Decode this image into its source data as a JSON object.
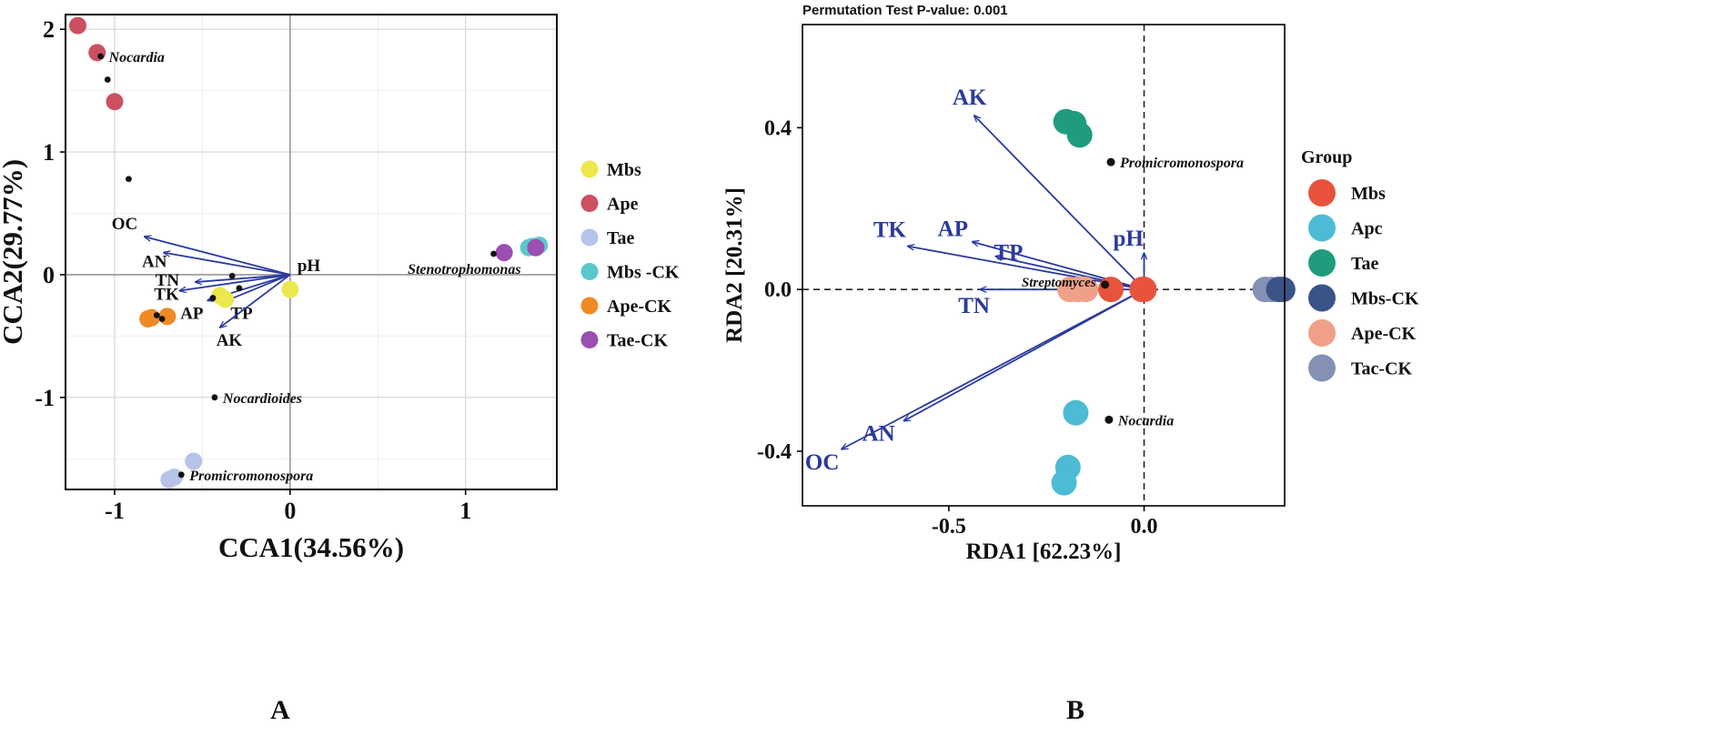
{
  "colors": {
    "arrow": "#2B3A9E",
    "frame": "#000000",
    "gridA_major": "#dcdcdc",
    "gridA_minor": "#efefef",
    "zero_line": "#9a9a9a",
    "point": "#111111"
  },
  "chart_data": [
    {
      "id": "A",
      "type": "scatter",
      "subtype": "CCA biplot",
      "panel_label": "A",
      "xlabel": "CCA1(34.56%)",
      "ylabel": "CCA2(29.77%)",
      "xlim": [
        -1.28,
        1.52
      ],
      "ylim": [
        -1.75,
        2.12
      ],
      "xticks": [
        {
          "v": -1,
          "label": "-1"
        },
        {
          "v": 0,
          "label": "0"
        },
        {
          "v": 1,
          "label": "1"
        }
      ],
      "yticks": [
        {
          "v": -1,
          "label": "-1"
        },
        {
          "v": 0,
          "label": "0"
        },
        {
          "v": 1,
          "label": "1"
        },
        {
          "v": 2,
          "label": "2"
        }
      ],
      "grid": true,
      "legend_title": "",
      "legend": [
        {
          "name": "Mbs",
          "color": "#ECE84B"
        },
        {
          "name": "Ape",
          "color": "#CC4F62"
        },
        {
          "name": "Tae",
          "color": "#B7C3E8"
        },
        {
          "name": "Mbs -CK",
          "color": "#5CC7CB"
        },
        {
          "name": "Ape-CK",
          "color": "#F08A24"
        },
        {
          "name": "Tae-CK",
          "color": "#9A4FB1"
        }
      ],
      "samples": [
        {
          "group": "Ape",
          "x": -1.21,
          "y": 2.03
        },
        {
          "group": "Ape",
          "x": -1.1,
          "y": 1.81
        },
        {
          "group": "Ape",
          "x": -1.0,
          "y": 1.41
        },
        {
          "group": "Mbs",
          "x": -0.37,
          "y": -0.2
        },
        {
          "group": "Mbs",
          "x": -0.4,
          "y": -0.17
        },
        {
          "group": "Mbs",
          "x": 0.0,
          "y": -0.12
        },
        {
          "group": "Tae",
          "x": -0.55,
          "y": -1.52
        },
        {
          "group": "Tae",
          "x": -0.66,
          "y": -1.65
        },
        {
          "group": "Tae",
          "x": -0.69,
          "y": -1.67
        },
        {
          "group": "Ape-CK",
          "x": -0.79,
          "y": -0.35
        },
        {
          "group": "Ape-CK",
          "x": -0.81,
          "y": -0.36
        },
        {
          "group": "Ape-CK",
          "x": -0.7,
          "y": -0.34
        },
        {
          "group": "Mbs -CK",
          "x": 1.36,
          "y": 0.22
        },
        {
          "group": "Mbs -CK",
          "x": 1.38,
          "y": 0.23
        },
        {
          "group": "Mbs -CK",
          "x": 1.42,
          "y": 0.24
        },
        {
          "group": "Tae-CK",
          "x": 1.22,
          "y": 0.18
        },
        {
          "group": "Tae-CK",
          "x": 1.4,
          "y": 0.22
        }
      ],
      "taxa": [
        {
          "name": "Nocardia",
          "x": -1.08,
          "y": 1.78,
          "label": true
        },
        {
          "name": "",
          "x": -1.04,
          "y": 1.59,
          "label": false
        },
        {
          "name": "",
          "x": -0.92,
          "y": 0.78,
          "label": false
        },
        {
          "name": "",
          "x": -0.76,
          "y": -0.33,
          "label": false
        },
        {
          "name": "",
          "x": -0.73,
          "y": -0.36,
          "label": false
        },
        {
          "name": "",
          "x": -0.33,
          "y": -0.01,
          "label": false
        },
        {
          "name": "",
          "x": -0.29,
          "y": -0.11,
          "label": false
        },
        {
          "name": "",
          "x": -0.44,
          "y": -0.19,
          "label": false
        },
        {
          "name": "Stenotrophomonas",
          "x": 1.16,
          "y": 0.17,
          "label": true
        },
        {
          "name": "Nocardioides",
          "x": -0.43,
          "y": -1.0,
          "label": true
        },
        {
          "name": "Promicromonospora",
          "x": -0.62,
          "y": -1.63,
          "label": true
        }
      ],
      "vectors": [
        {
          "name": "OC",
          "x": -0.83,
          "y": 0.31
        },
        {
          "name": "AN",
          "x": -0.72,
          "y": 0.18
        },
        {
          "name": "TN",
          "x": -0.54,
          "y": -0.06
        },
        {
          "name": "TK",
          "x": -0.63,
          "y": -0.13
        },
        {
          "name": "AP",
          "x": -0.47,
          "y": -0.21
        },
        {
          "name": "TP",
          "x": -0.36,
          "y": -0.21
        },
        {
          "name": "AK",
          "x": -0.4,
          "y": -0.43
        },
        {
          "name": "pH",
          "x": 0.0,
          "y": 0.0
        }
      ]
    },
    {
      "id": "B",
      "type": "scatter",
      "subtype": "RDA biplot",
      "panel_label": "B",
      "title": "Permutation Test P-value: 0.001",
      "xlabel": "RDA1 [62.23%]",
      "ylabel": "RDA2 [20.31%]",
      "xlim": [
        -0.875,
        0.36
      ],
      "ylim": [
        -0.535,
        0.655
      ],
      "xticks": [
        {
          "v": -0.5,
          "label": "-0.5"
        },
        {
          "v": 0,
          "label": "0.0"
        }
      ],
      "yticks": [
        {
          "v": -0.4,
          "label": "-0.4"
        },
        {
          "v": 0,
          "label": "0.0"
        },
        {
          "v": 0.4,
          "label": "0.4"
        }
      ],
      "grid": false,
      "legend_title": "Group",
      "legend": [
        {
          "name": "Mbs",
          "color": "#E8533D"
        },
        {
          "name": "Apc",
          "color": "#4DBBD5"
        },
        {
          "name": "Tae",
          "color": "#1F9C7F"
        },
        {
          "name": "Mbs-CK",
          "color": "#3A5488"
        },
        {
          "name": "Ape-CK",
          "color": "#F0A088"
        },
        {
          "name": "Tac-CK",
          "color": "#8491B4"
        }
      ],
      "samples": [
        {
          "group": "Tae",
          "x": -0.2,
          "y": 0.415
        },
        {
          "group": "Tae",
          "x": -0.18,
          "y": 0.41
        },
        {
          "group": "Tae",
          "x": -0.165,
          "y": 0.382
        },
        {
          "group": "Apc",
          "x": -0.175,
          "y": -0.305
        },
        {
          "group": "Apc",
          "x": -0.195,
          "y": -0.44
        },
        {
          "group": "Apc",
          "x": -0.205,
          "y": -0.478
        },
        {
          "group": "Ape-CK",
          "x": -0.19,
          "y": 0.0
        },
        {
          "group": "Ape-CK",
          "x": -0.17,
          "y": 0.0
        },
        {
          "group": "Ape-CK",
          "x": -0.15,
          "y": 0.0
        },
        {
          "group": "Mbs",
          "x": -0.085,
          "y": 0.0
        },
        {
          "group": "Mbs",
          "x": -0.005,
          "y": 0.0
        },
        {
          "group": "Mbs",
          "x": 0.0,
          "y": 0.0
        },
        {
          "group": "Tac-CK",
          "x": 0.31,
          "y": 0.0
        },
        {
          "group": "Tac-CK",
          "x": 0.325,
          "y": 0.0
        },
        {
          "group": "Mbs-CK",
          "x": 0.345,
          "y": 0.0
        },
        {
          "group": "Mbs-CK",
          "x": 0.355,
          "y": 0.0
        }
      ],
      "taxa": [
        {
          "name": "Promicromonospora",
          "x": -0.085,
          "y": 0.315,
          "label": true
        },
        {
          "name": "Streptomyces",
          "x": -0.1,
          "y": 0.012,
          "label": true
        },
        {
          "name": "Nocardia",
          "x": -0.09,
          "y": -0.322,
          "label": true
        }
      ],
      "vectors": [
        {
          "name": "AK",
          "x": -0.435,
          "y": 0.43
        },
        {
          "name": "TK",
          "x": -0.605,
          "y": 0.107
        },
        {
          "name": "AP",
          "x": -0.44,
          "y": 0.118
        },
        {
          "name": "TP",
          "x": -0.38,
          "y": 0.082
        },
        {
          "name": "TN",
          "x": -0.42,
          "y": 0.0
        },
        {
          "name": "pH",
          "x": 0.0,
          "y": 0.09
        },
        {
          "name": "AN",
          "x": -0.615,
          "y": -0.325
        },
        {
          "name": "OC",
          "x": -0.775,
          "y": -0.395
        }
      ]
    }
  ]
}
